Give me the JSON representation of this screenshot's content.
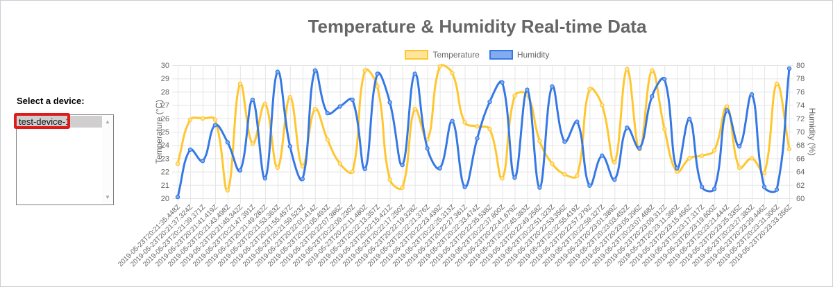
{
  "device_panel": {
    "label": "Select a device:",
    "listbox": {
      "items": [
        {
          "label": "test-device-1",
          "selected": true
        }
      ],
      "selected_bg": "#d0cecf",
      "scrollbar": {
        "up_icon": "▲",
        "down_icon": "▼"
      }
    },
    "annotation": {
      "color": "#df1c1c"
    }
  },
  "chart": {
    "title": "Temperature & Humidity Real-time Data",
    "title_color": "#666666",
    "legend": [
      {
        "label": "Temperature",
        "border": "#ffc62e",
        "fill": "#ffe49c"
      },
      {
        "label": "Humidity",
        "border": "#3578e5",
        "fill": "#82acef"
      }
    ]
  },
  "chart_data": {
    "type": "line",
    "title": "Temperature & Humidity Real-time Data",
    "grid": true,
    "legend_position": "top",
    "x": [
      "2019-05-23T20:21:35.448Z",
      "2019-05-23T20:21:37.324Z",
      "2019-05-23T20:21:39.371Z",
      "2019-05-23T20:21:41.419Z",
      "2019-05-23T20:21:43.498Z",
      "2019-05-23T20:21:45.342Z",
      "2019-05-23T20:21:47.391Z",
      "2019-05-23T20:21:49.282Z",
      "2019-05-23T20:21:53.363Z",
      "2019-05-23T20:21:55.457Z",
      "2019-05-23T20:21:59.523Z",
      "2019-05-23T20:22:01.414Z",
      "2019-05-23T20:22:05.493Z",
      "2019-05-23T20:22:07.386Z",
      "2019-05-23T20:22:09.230Z",
      "2019-05-23T20:22:11.480Z",
      "2019-05-23T20:22:13.357Z",
      "2019-05-23T20:22:15.421Z",
      "2019-05-23T20:22:17.250Z",
      "2019-05-23T20:22:19.328Z",
      "2019-05-23T20:22:21.376Z",
      "2019-05-23T20:22:23.439Z",
      "2019-05-23T20:22:25.313Z",
      "2019-05-23T20:22:27.361Z",
      "2019-05-23T20:22:33.474Z",
      "2019-05-23T20:22:35.538Z",
      "2019-05-23T20:22:37.600Z",
      "2019-05-23T20:22:41.679Z",
      "2019-05-23T20:22:45.383Z",
      "2019-05-23T20:22:49.258Z",
      "2019-05-23T20:22:51.323Z",
      "2019-05-23T20:22:53.356Z",
      "2019-05-23T20:22:55.419Z",
      "2019-05-23T20:22:57.279Z",
      "2019-05-23T20:22:59.327Z",
      "2019-05-23T20:23:01.389Z",
      "2019-05-23T20:23:03.452Z",
      "2019-05-23T20:23:05.296Z",
      "2019-05-23T20:23:07.468Z",
      "2019-05-23T20:23:09.312Z",
      "2019-05-23T20:23:11.360Z",
      "2019-05-23T20:23:15.456Z",
      "2019-05-23T20:23:17.317Z",
      "2019-05-23T20:23:19.600Z",
      "2019-05-23T20:23:21.444Z",
      "2019-05-23T20:23:25.335Z",
      "2019-05-23T20:23:27.383Z",
      "2019-05-23T20:23:29.446Z",
      "2019-05-23T20:23:31.306Z",
      "2019-05-23T20:23:33.356Z"
    ],
    "series": [
      {
        "name": "Temperature",
        "axis": "left",
        "color": "#ffc62e",
        "point_fill": "#ffe49c",
        "values": [
          22.6,
          25.9,
          26.0,
          25.9,
          20.6,
          28.6,
          24.1,
          27.1,
          22.3,
          27.6,
          22.4,
          26.7,
          24.4,
          22.6,
          22.0,
          29.6,
          28.4,
          21.4,
          20.8,
          26.7,
          24.4,
          29.9,
          29.4,
          25.7,
          25.4,
          25.2,
          21.5,
          27.7,
          27.8,
          24.3,
          22.6,
          21.8,
          21.7,
          28.2,
          27.0,
          22.7,
          29.7,
          23.7,
          29.6,
          25.2,
          22.0,
          23.0,
          23.2,
          23.6,
          26.9,
          22.3,
          23.0,
          21.9,
          28.6,
          23.7
        ]
      },
      {
        "name": "Humidity",
        "axis": "right",
        "color": "#3578e5",
        "point_fill": "#82acef",
        "values": [
          60.2,
          67.3,
          65.6,
          71.0,
          68.4,
          64.2,
          74.8,
          63.0,
          79.0,
          67.8,
          62.9,
          79.2,
          72.8,
          73.8,
          74.8,
          64.4,
          78.7,
          74.4,
          65.0,
          78.7,
          67.5,
          64.5,
          71.6,
          61.7,
          69.0,
          74.5,
          77.4,
          63.1,
          76.3,
          61.6,
          76.8,
          68.5,
          71.5,
          61.9,
          66.4,
          62.8,
          70.6,
          67.5,
          75.3,
          77.9,
          64.5,
          71.9,
          61.7,
          61.4,
          73.2,
          67.8,
          75.6,
          61.7,
          61.3,
          79.5
        ]
      }
    ],
    "y_left": {
      "label": "Temperature (°C)",
      "min": 20,
      "max": 30,
      "step": 1
    },
    "y_right": {
      "label": "Humidity (%)",
      "min": 60,
      "max": 80,
      "step": 2
    },
    "tick_color": "#666666",
    "grid_color": "#e5e5e5"
  }
}
